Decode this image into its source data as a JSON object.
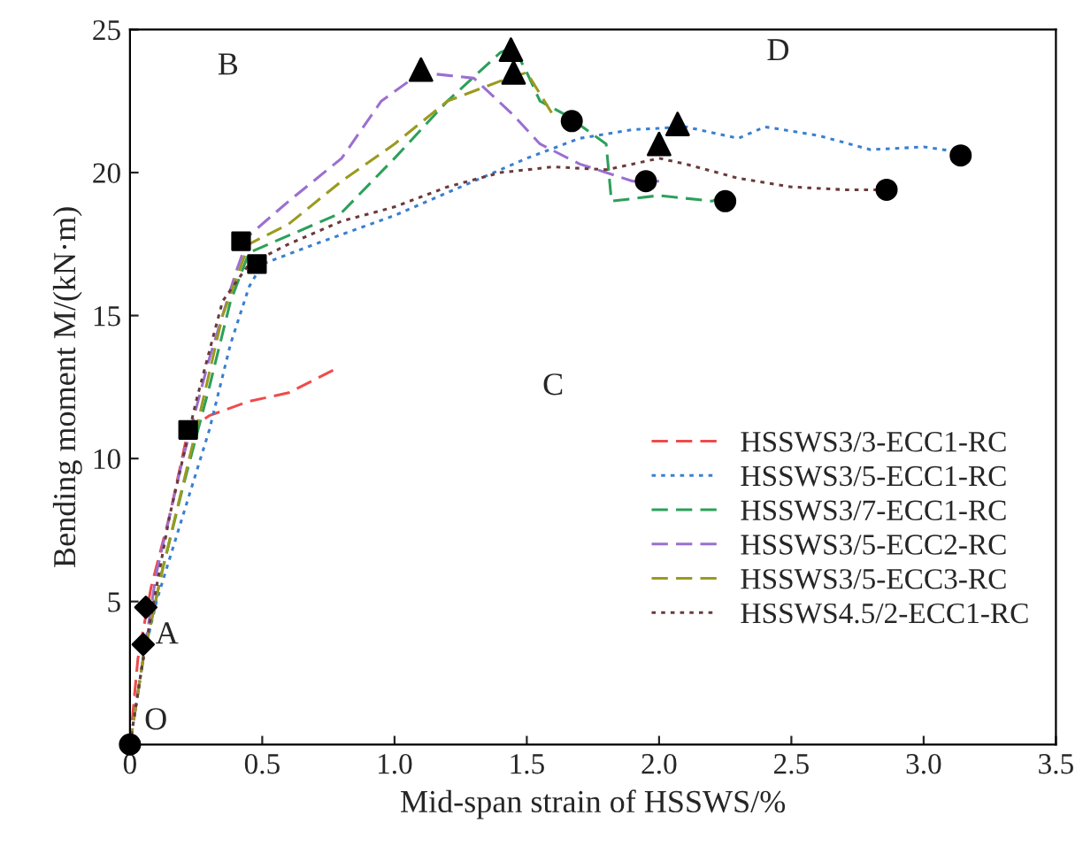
{
  "chart_data": {
    "type": "line",
    "xlabel": "Mid-span strain of HSSWS/%",
    "ylabel": "Bending moment M/(kN·m)",
    "xlim": [
      0,
      3.5
    ],
    "xticks": [
      0,
      0.5,
      {
        "value": 1,
        "label": "1.0"
      },
      1.5,
      {
        "value": 2,
        "label": "2.0"
      },
      2.5,
      {
        "value": 3,
        "label": "3.0"
      },
      3.5
    ],
    "ylim": [
      0,
      25
    ],
    "yticks": [
      5,
      10,
      15,
      20,
      25
    ],
    "grid": false,
    "legend": "right",
    "series": [
      {
        "name": "HSSWS3/3-ECC1-RC",
        "color": "#ef4b4b",
        "line_style": "dashed",
        "x": [
          0,
          0.03,
          0.08,
          0.15,
          0.22,
          0.3,
          0.45,
          0.6,
          0.77
        ],
        "values": [
          0,
          3,
          5.5,
          8,
          11,
          11.5,
          12,
          12.3,
          13.1
        ]
      },
      {
        "name": "HSSWS3/5-ECC1-RC",
        "color": "#3a7fd0",
        "line_style": "dotted",
        "x": [
          0,
          0.05,
          0.1,
          0.2,
          0.3,
          0.38,
          0.45,
          0.5,
          0.7,
          1.0,
          1.3,
          1.5,
          1.7,
          1.9,
          2.1,
          2.3,
          2.4,
          2.6,
          2.8,
          3.0,
          3.15
        ],
        "values": [
          0,
          3,
          5,
          8,
          11,
          14,
          16,
          16.8,
          17.5,
          18.5,
          19.7,
          20.5,
          21.2,
          21.5,
          21.6,
          21.2,
          21.6,
          21.3,
          20.8,
          20.9,
          20.7
        ]
      },
      {
        "name": "HSSWS3/7-ECC1-RC",
        "color": "#2ca05a",
        "line_style": "dashed",
        "x": [
          0,
          0.05,
          0.12,
          0.2,
          0.3,
          0.38,
          0.45,
          0.6,
          0.8,
          1.0,
          1.2,
          1.4,
          1.45,
          1.5,
          1.55,
          1.65,
          1.8,
          1.82,
          2.0,
          2.2,
          2.25
        ],
        "values": [
          0,
          3,
          6,
          9,
          12.5,
          15.5,
          17.2,
          17.8,
          18.6,
          20.5,
          22.5,
          24.2,
          24.4,
          23.5,
          22.5,
          22,
          21,
          19,
          19.2,
          19,
          19.2
        ]
      },
      {
        "name": "HSSWS3/5-ECC2-RC",
        "color": "#9b6fd0",
        "line_style": "dashed",
        "x": [
          0,
          0.05,
          0.1,
          0.2,
          0.3,
          0.4,
          0.45,
          0.6,
          0.8,
          0.95,
          1.1,
          1.3,
          1.45,
          1.55,
          1.7,
          1.9,
          2.0
        ],
        "values": [
          0,
          3,
          6,
          10,
          13.5,
          16.5,
          17.8,
          19,
          20.5,
          22.5,
          23.5,
          23.3,
          22,
          21,
          20.3,
          19.7,
          19.7
        ]
      },
      {
        "name": "HSSWS3/5-ECC3-RC",
        "color": "#9a9a20",
        "line_style": "dashed",
        "x": [
          0,
          0.05,
          0.12,
          0.25,
          0.35,
          0.45,
          0.6,
          0.8,
          1.0,
          1.2,
          1.4,
          1.5,
          1.6
        ],
        "values": [
          0,
          3,
          6,
          11,
          15,
          17.5,
          18.2,
          19.7,
          21,
          22.5,
          23.2,
          23.5,
          22
        ]
      },
      {
        "name": "HSSWS4.5/2-ECC1-RC",
        "color": "#6b3a3a",
        "line_style": "dotted",
        "x": [
          0,
          0.05,
          0.15,
          0.25,
          0.35,
          0.45,
          0.6,
          0.8,
          1.0,
          1.2,
          1.4,
          1.6,
          1.8,
          2.0,
          2.1,
          2.3,
          2.5,
          2.7,
          2.85
        ],
        "values": [
          0,
          3,
          8,
          12,
          15.5,
          16.8,
          17.5,
          18.3,
          18.8,
          19.5,
          20,
          20.2,
          20.1,
          20.5,
          20.3,
          19.8,
          19.5,
          19.4,
          19.4
        ]
      },
      {
        "type": "scatter",
        "marker": "circle",
        "color": "#000000",
        "x": [
          0,
          1.67,
          1.95,
          2.25,
          2.86,
          3.14
        ],
        "values": [
          0,
          21.8,
          19.7,
          19.0,
          19.4,
          20.6
        ]
      },
      {
        "type": "scatter",
        "marker": "diamond",
        "color": "#000000",
        "x": [
          0.05,
          0.06
        ],
        "values": [
          3.5,
          4.8
        ]
      },
      {
        "type": "scatter",
        "marker": "square",
        "color": "#000000",
        "x": [
          0.22,
          0.42,
          0.48
        ],
        "values": [
          11,
          17.6,
          16.8
        ]
      },
      {
        "type": "scatter",
        "marker": "triangle",
        "color": "#000000",
        "x": [
          1.1,
          1.44,
          1.45,
          2.0,
          2.07
        ],
        "values": [
          23.6,
          24.3,
          23.5,
          21,
          21.7
        ]
      }
    ],
    "annotations": [
      "O",
      "A",
      "B",
      "C",
      "D"
    ]
  }
}
